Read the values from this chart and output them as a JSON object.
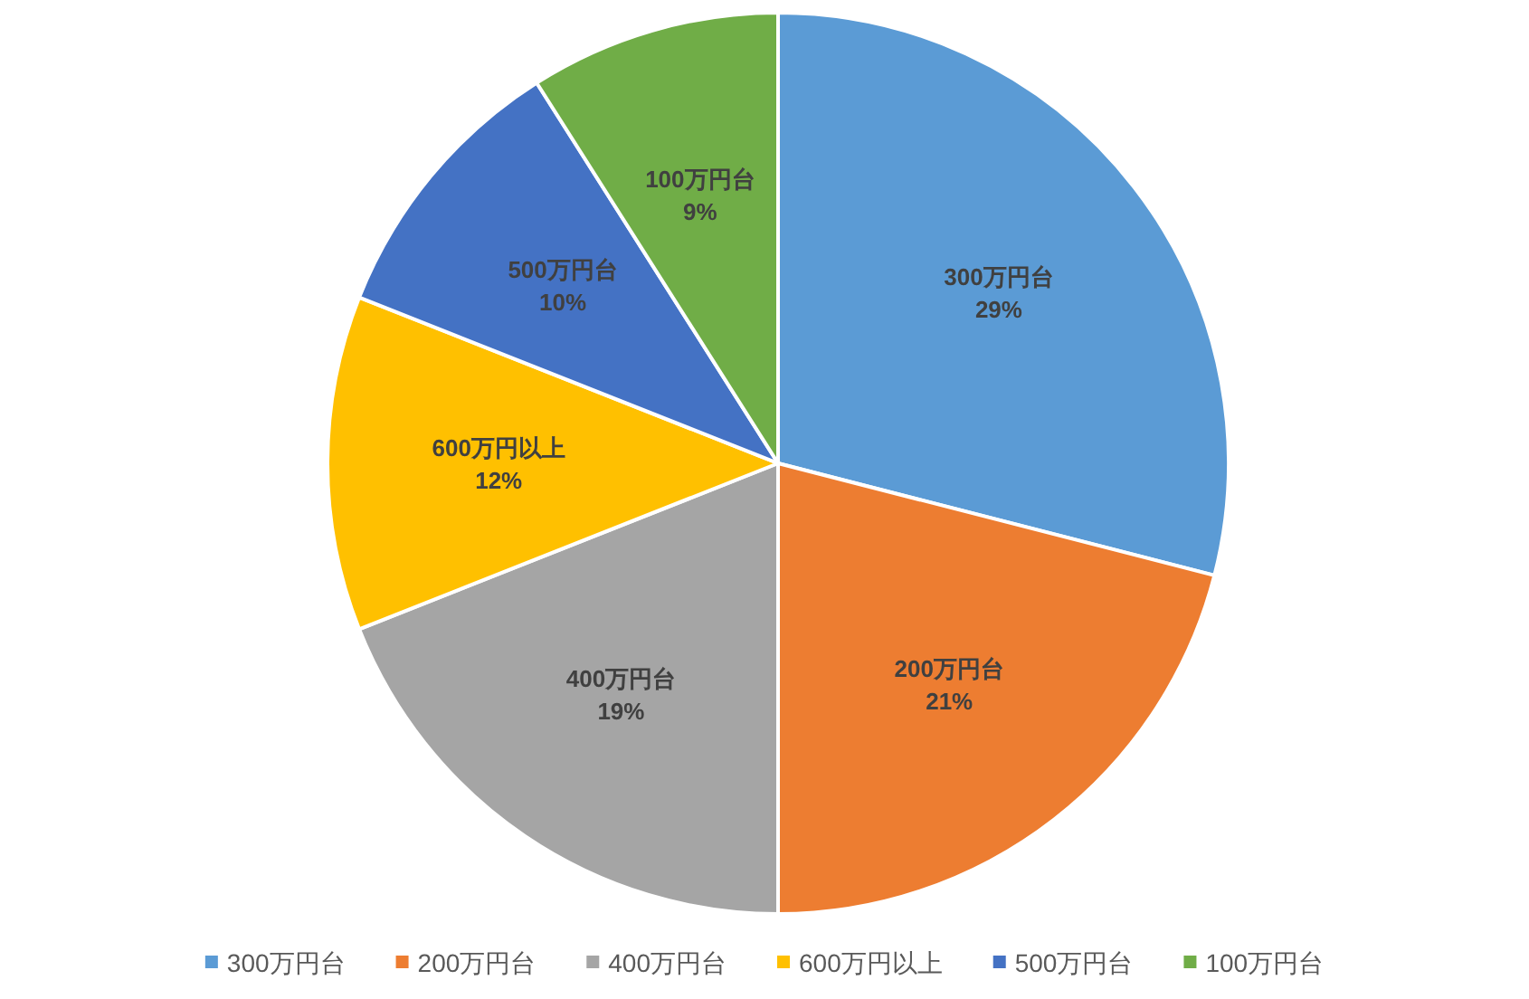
{
  "chart_data": {
    "type": "pie",
    "categories": [
      "300万円台",
      "200万円台",
      "400万円台",
      "600万円以上",
      "500万円台",
      "100万円台"
    ],
    "values": [
      29,
      21,
      19,
      12,
      10,
      9
    ],
    "colors": [
      "#5b9bd5",
      "#ed7d31",
      "#a5a5a5",
      "#ffc000",
      "#4472c4",
      "#70ad47"
    ],
    "value_labels": [
      "29%",
      "21%",
      "19%",
      "12%",
      "10%",
      "9%"
    ],
    "legend": "bottom"
  }
}
